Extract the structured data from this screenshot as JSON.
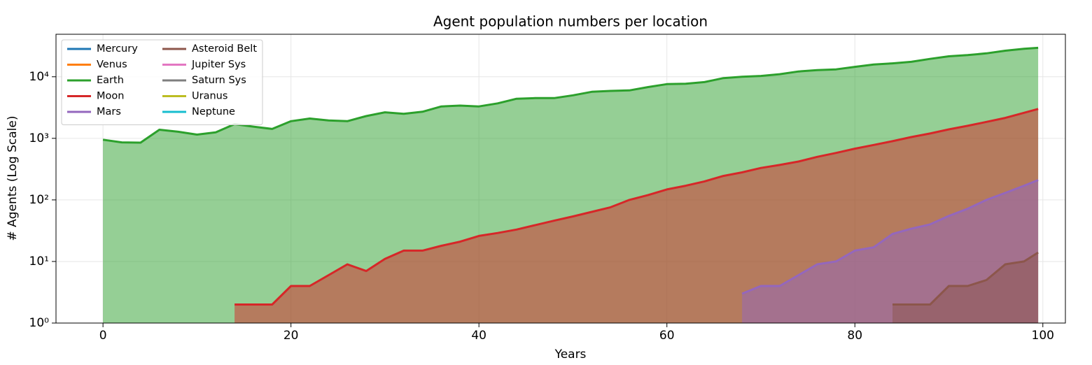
{
  "chart_data": {
    "type": "area",
    "title": "Agent population numbers per location",
    "xlabel": "Years",
    "ylabel": "# Agents (Log Scale)",
    "log_y": true,
    "grid": true,
    "legend": "upper left",
    "legend_columns": 2,
    "x": [
      0,
      2,
      4,
      6,
      8,
      10,
      12,
      14,
      16,
      18,
      20,
      22,
      24,
      26,
      28,
      30,
      32,
      34,
      36,
      38,
      40,
      42,
      44,
      46,
      48,
      50,
      52,
      54,
      56,
      58,
      60,
      62,
      64,
      66,
      68,
      70,
      72,
      74,
      76,
      78,
      80,
      82,
      84,
      86,
      88,
      90,
      92,
      94,
      96,
      98,
      99.5
    ],
    "xlim": [
      -5,
      102.4
    ],
    "xticks": [
      0,
      20,
      40,
      60,
      80,
      100
    ],
    "ylim": [
      1,
      49000
    ],
    "yticks": [
      {
        "value": 1,
        "label": "10⁰"
      },
      {
        "value": 10,
        "label": "10¹"
      },
      {
        "value": 100,
        "label": "10²"
      },
      {
        "value": 1000,
        "label": "10³"
      },
      {
        "value": 10000,
        "label": "10⁴"
      }
    ],
    "series": [
      {
        "name": "Mercury",
        "color": "#1f77b4",
        "values": [
          null,
          null,
          null,
          null,
          null,
          null,
          null,
          null,
          null,
          null,
          null,
          null,
          null,
          null,
          null,
          null,
          null,
          null,
          null,
          null,
          null,
          null,
          null,
          null,
          null,
          null,
          null,
          null,
          null,
          null,
          null,
          null,
          null,
          null,
          null,
          null,
          null,
          null,
          null,
          null,
          null,
          null,
          null,
          null,
          null,
          null,
          null,
          null,
          null,
          null,
          null
        ]
      },
      {
        "name": "Venus",
        "color": "#ff7f0e",
        "values": [
          null,
          null,
          null,
          null,
          null,
          null,
          null,
          null,
          null,
          null,
          null,
          null,
          null,
          null,
          null,
          null,
          null,
          null,
          null,
          null,
          null,
          null,
          null,
          null,
          null,
          null,
          null,
          null,
          null,
          null,
          null,
          null,
          null,
          null,
          null,
          null,
          null,
          null,
          null,
          null,
          null,
          null,
          null,
          null,
          null,
          null,
          null,
          null,
          null,
          null,
          null
        ]
      },
      {
        "name": "Earth",
        "color": "#2ca02c",
        "values": [
          950,
          860,
          850,
          1380,
          1280,
          1150,
          1250,
          1700,
          1550,
          1420,
          1900,
          2100,
          1950,
          1900,
          2300,
          2650,
          2500,
          2700,
          3300,
          3400,
          3300,
          3700,
          4400,
          4500,
          4500,
          5000,
          5700,
          5900,
          6000,
          6800,
          7600,
          7700,
          8200,
          9500,
          10000,
          10300,
          11000,
          12200,
          12800,
          13200,
          14500,
          15800,
          16500,
          17500,
          19500,
          21500,
          22500,
          24000,
          26500,
          28500,
          29500
        ]
      },
      {
        "name": "Moon",
        "color": "#d62728",
        "values": [
          null,
          null,
          null,
          null,
          null,
          null,
          null,
          2,
          2,
          2,
          4,
          4,
          6,
          9,
          7,
          11,
          15,
          15,
          18,
          21,
          26,
          29,
          33,
          39,
          46,
          54,
          64,
          76,
          100,
          120,
          148,
          170,
          200,
          245,
          280,
          330,
          370,
          420,
          500,
          580,
          680,
          780,
          900,
          1050,
          1200,
          1400,
          1600,
          1850,
          2150,
          2600,
          3000
        ]
      },
      {
        "name": "Mars",
        "color": "#9467bd",
        "values": [
          null,
          null,
          null,
          null,
          null,
          null,
          null,
          null,
          null,
          null,
          null,
          null,
          null,
          null,
          null,
          null,
          null,
          null,
          null,
          null,
          null,
          null,
          null,
          null,
          null,
          null,
          null,
          null,
          null,
          null,
          null,
          null,
          null,
          null,
          3,
          4,
          4,
          6,
          9,
          10,
          15,
          17,
          28,
          34,
          40,
          55,
          72,
          100,
          130,
          170,
          210
        ]
      },
      {
        "name": "Asteroid Belt",
        "color": "#8c564b",
        "values": [
          null,
          null,
          null,
          null,
          null,
          null,
          null,
          null,
          null,
          null,
          null,
          null,
          null,
          null,
          null,
          null,
          null,
          null,
          null,
          null,
          null,
          null,
          null,
          null,
          null,
          null,
          null,
          null,
          null,
          null,
          null,
          null,
          null,
          null,
          null,
          null,
          null,
          null,
          null,
          null,
          null,
          null,
          2,
          2,
          2,
          4,
          4,
          5,
          9,
          10,
          14
        ]
      },
      {
        "name": "Jupiter Sys",
        "color": "#e377c2",
        "values": [
          null,
          null,
          null,
          null,
          null,
          null,
          null,
          null,
          null,
          null,
          null,
          null,
          null,
          null,
          null,
          null,
          null,
          null,
          null,
          null,
          null,
          null,
          null,
          null,
          null,
          null,
          null,
          null,
          null,
          null,
          null,
          null,
          null,
          null,
          null,
          null,
          null,
          null,
          null,
          null,
          null,
          null,
          null,
          null,
          null,
          null,
          null,
          null,
          null,
          null,
          null
        ]
      },
      {
        "name": "Saturn Sys",
        "color": "#7f7f7f",
        "values": [
          null,
          null,
          null,
          null,
          null,
          null,
          null,
          null,
          null,
          null,
          null,
          null,
          null,
          null,
          null,
          null,
          null,
          null,
          null,
          null,
          null,
          null,
          null,
          null,
          null,
          null,
          null,
          null,
          null,
          null,
          null,
          null,
          null,
          null,
          null,
          null,
          null,
          null,
          null,
          null,
          null,
          null,
          null,
          null,
          null,
          null,
          null,
          null,
          null,
          null,
          null
        ]
      },
      {
        "name": "Uranus",
        "color": "#bcbd22",
        "values": [
          null,
          null,
          null,
          null,
          null,
          null,
          null,
          null,
          null,
          null,
          null,
          null,
          null,
          null,
          null,
          null,
          null,
          null,
          null,
          null,
          null,
          null,
          null,
          null,
          null,
          null,
          null,
          null,
          null,
          null,
          null,
          null,
          null,
          null,
          null,
          null,
          null,
          null,
          null,
          null,
          null,
          null,
          null,
          null,
          null,
          null,
          null,
          null,
          null,
          null,
          null
        ]
      },
      {
        "name": "Neptune",
        "color": "#17becf",
        "values": [
          null,
          null,
          null,
          null,
          null,
          null,
          null,
          null,
          null,
          null,
          null,
          null,
          null,
          null,
          null,
          null,
          null,
          null,
          null,
          null,
          null,
          null,
          null,
          null,
          null,
          null,
          null,
          null,
          null,
          null,
          null,
          null,
          null,
          null,
          null,
          null,
          null,
          null,
          null,
          null,
          null,
          null,
          null,
          null,
          null,
          null,
          null,
          null,
          null,
          null,
          null
        ]
      }
    ]
  }
}
